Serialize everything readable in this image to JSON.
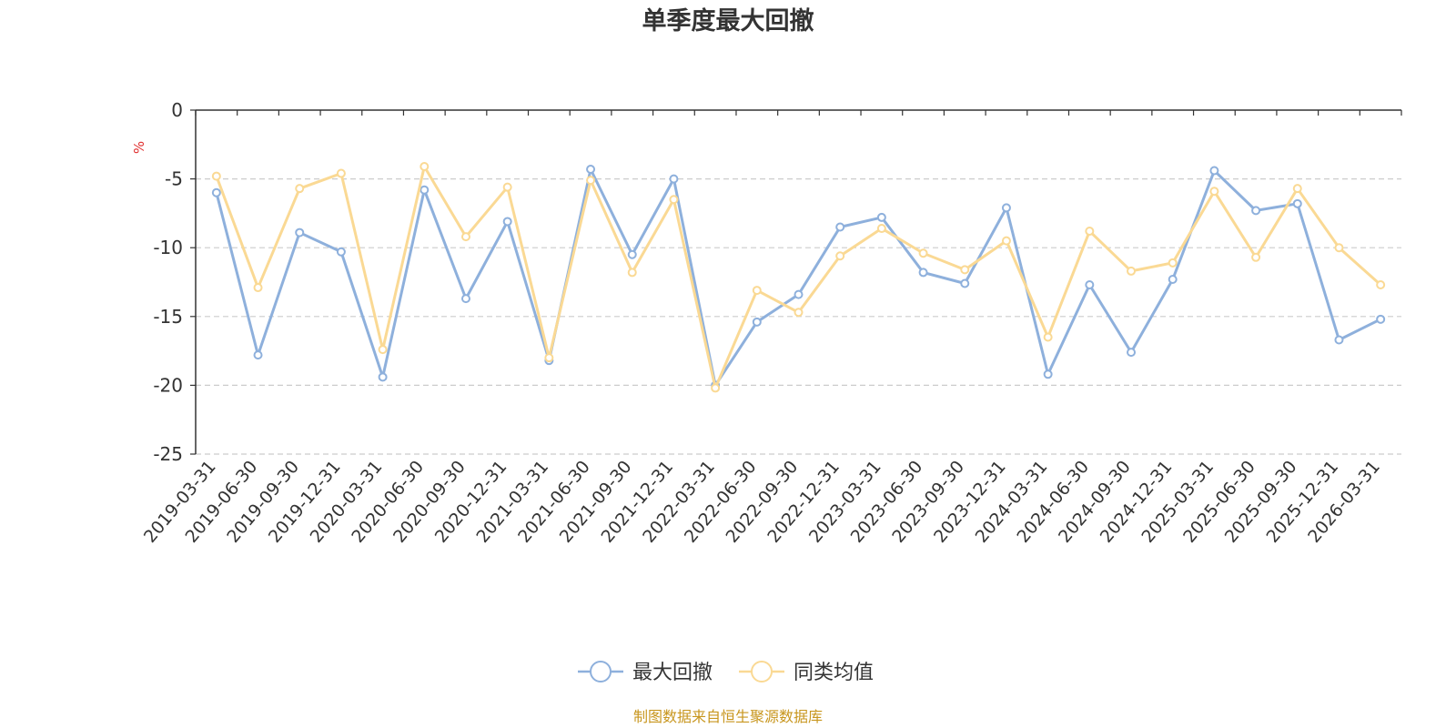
{
  "chart_data": {
    "type": "line",
    "title": "单季度最大回撤",
    "ylabel": "%",
    "ylim": [
      -25,
      0
    ],
    "yticks": [
      0,
      -5,
      -10,
      -15,
      -20,
      -25
    ],
    "grid": true,
    "legend_position": "bottom",
    "categories": [
      "2019-03-31",
      "2019-06-30",
      "2019-09-30",
      "2019-12-31",
      "2020-03-31",
      "2020-06-30",
      "2020-09-30",
      "2020-12-31",
      "2021-03-31",
      "2021-06-30",
      "2021-09-30",
      "2021-12-31",
      "2022-03-31",
      "2022-06-30",
      "2022-09-30",
      "2022-12-31",
      "2023-03-31",
      "2023-06-30",
      "2023-09-30",
      "2023-12-31",
      "2024-03-31",
      "2024-06-30",
      "2024-09-30",
      "2024-12-31",
      "2025-03-31",
      "2025-06-30",
      "2025-09-30",
      "2025-12-31",
      "2026-03-31"
    ],
    "series": [
      {
        "name": "最大回撤",
        "color": "#8eb0dc",
        "values": [
          -6.0,
          -17.8,
          -8.9,
          -10.3,
          -19.4,
          -5.8,
          -13.7,
          -8.1,
          -18.2,
          -4.3,
          -10.5,
          -5.0,
          -20.0,
          -15.4,
          -13.4,
          -8.5,
          -7.8,
          -11.8,
          -12.6,
          -7.1,
          -19.2,
          -12.7,
          -17.6,
          -12.3,
          -4.4,
          -7.3,
          -6.8,
          -16.7,
          -15.2
        ]
      },
      {
        "name": "同类均值",
        "color": "#fad994",
        "values": [
          -4.8,
          -12.9,
          -5.7,
          -4.6,
          -17.4,
          -4.1,
          -9.2,
          -5.6,
          -18.0,
          -5.1,
          -11.8,
          -6.5,
          -20.2,
          -13.1,
          -14.7,
          -10.6,
          -8.6,
          -10.4,
          -11.6,
          -9.5,
          -16.5,
          -8.8,
          -11.7,
          -11.1,
          -5.9,
          -10.7,
          -5.7,
          -10.0,
          -12.7
        ]
      }
    ]
  },
  "source_note": "制图数据来自恒生聚源数据库",
  "colors": {
    "axis": "#333333",
    "grid": "#cccccc",
    "unit_label": "#e03030",
    "source_note": "#c8961e"
  }
}
